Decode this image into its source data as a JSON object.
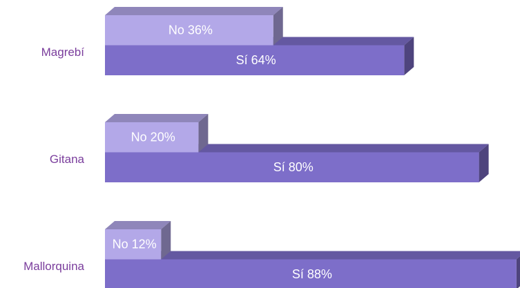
{
  "chart_data": {
    "type": "bar3d",
    "orientation": "horizontal",
    "categories": [
      "Magrebí",
      "Gitana",
      "Mallorquina"
    ],
    "xlim": [
      0,
      100
    ],
    "series": [
      {
        "name": "No",
        "color": "#b3a8e8",
        "values": [
          36,
          20,
          12
        ],
        "value_labels": [
          "No 36%",
          "No 20%",
          "No 12%"
        ]
      },
      {
        "name": "Sí",
        "color": "#7d6ec9",
        "values": [
          64,
          80,
          88
        ],
        "value_labels": [
          "Sí 64%",
          "Sí 80%",
          "Sí 88%"
        ]
      }
    ]
  }
}
